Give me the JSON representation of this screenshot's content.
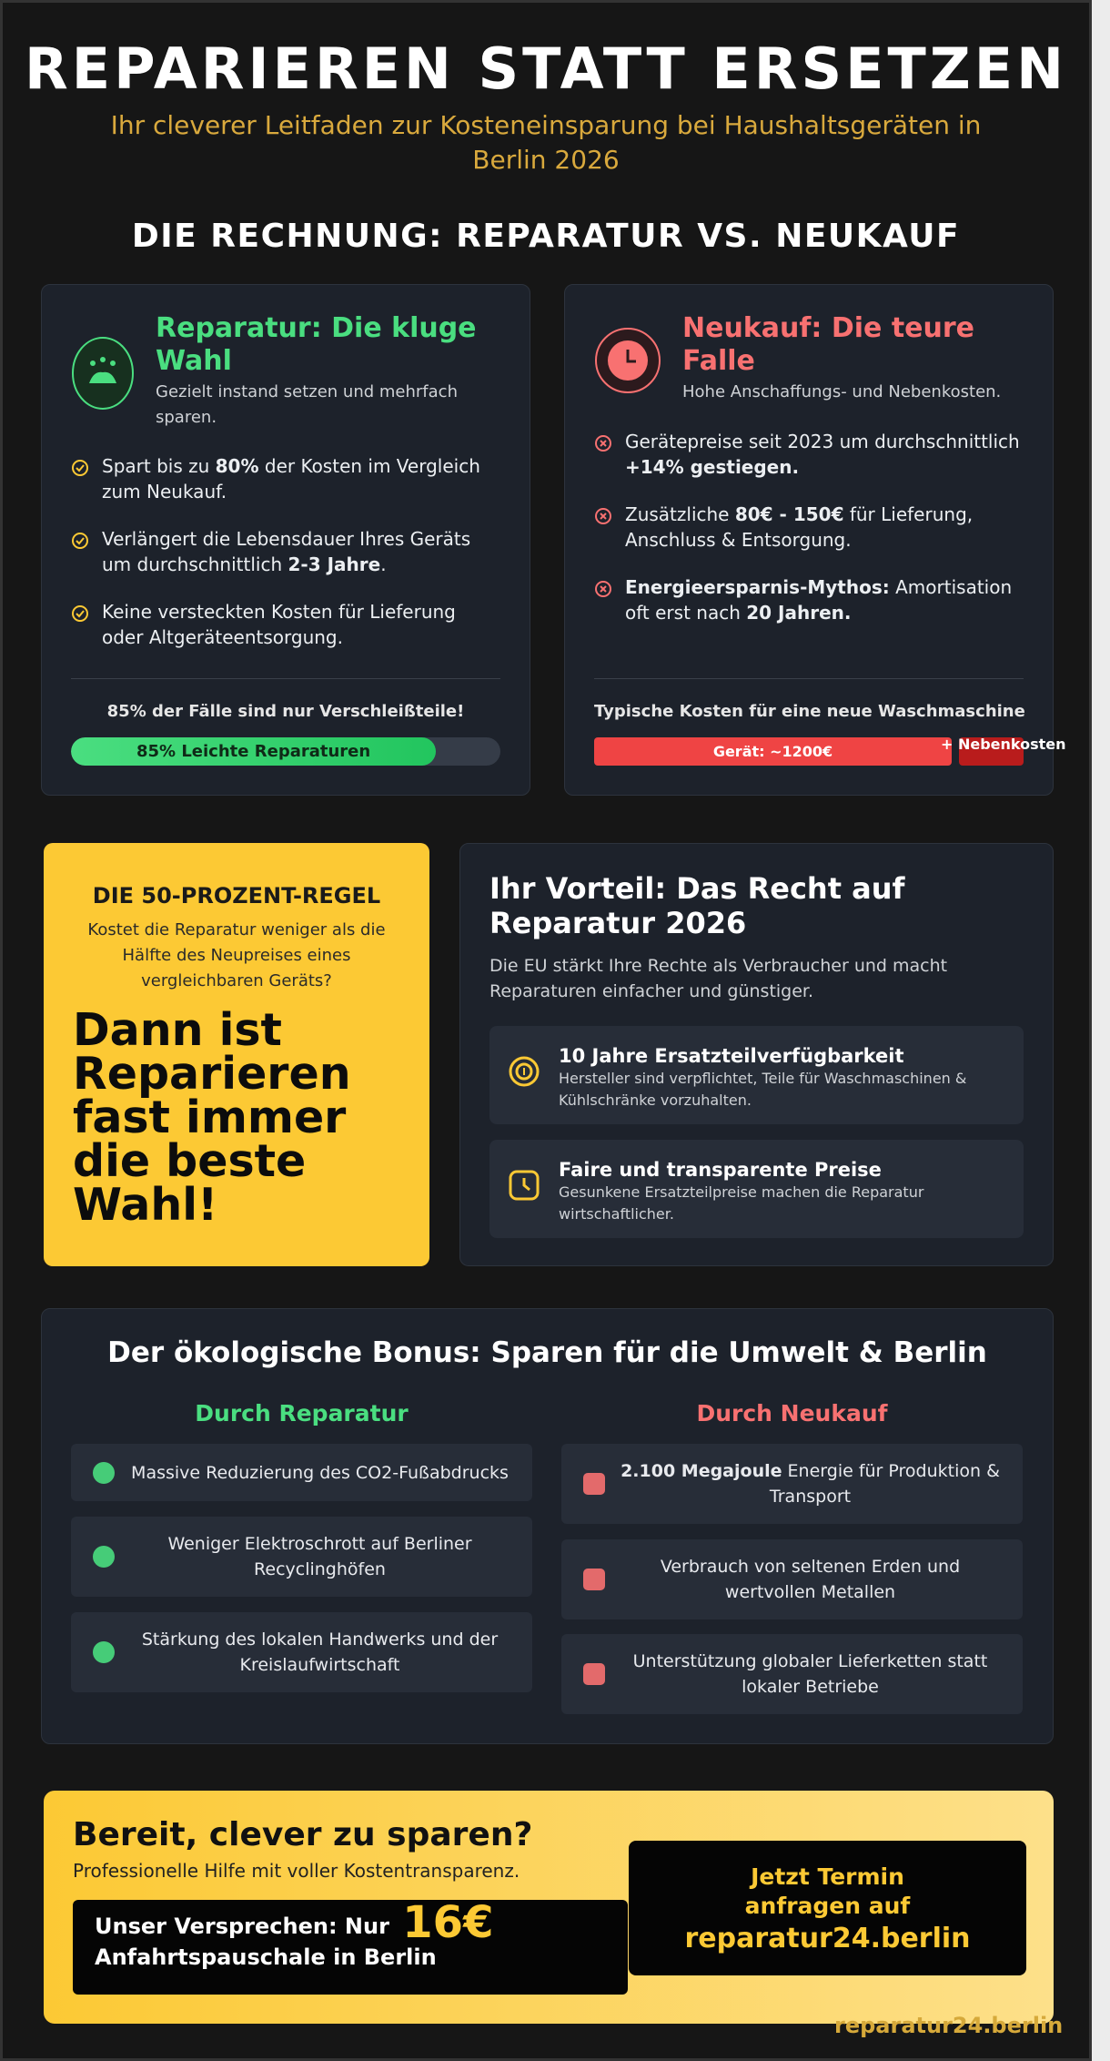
{
  "header": {
    "title": "REPARIEREN STATT ERSETZEN",
    "subtitle": "Ihr cleverer Leitfaden zur Kosteneinsparung bei Haushaltsgeräten in Berlin 2026"
  },
  "section_heading": "DIE RECHNUNG: REPARATUR VS. NEUKAUF",
  "repair_card": {
    "title": "Reparatur: Die kluge Wahl",
    "subtitle": "Gezielt instand setzen und mehrfach sparen.",
    "items": [
      [
        "Spart bis zu ",
        {
          "b": "80%"
        },
        " der Kosten im Vergleich zum Neukauf."
      ],
      [
        "Verlängert die Lebensdauer Ihres Geräts um durchschnittlich ",
        {
          "b": "2-3 Jahre"
        },
        "."
      ],
      [
        "Keine versteckten Kosten für Lieferung oder Altgeräteentsorgung."
      ]
    ],
    "caption": "85% der Fälle sind nur Verschleißteile!",
    "bar_label": "85% Leichte Reparaturen",
    "bar_percent": 85
  },
  "new_card": {
    "title": "Neukauf: Die teure Falle",
    "subtitle": "Hohe Anschaffungs- und Nebenkosten.",
    "items": [
      [
        "Gerätepreise seit 2023 um durchschnittlich ",
        {
          "b": "+14% gestiegen."
        }
      ],
      [
        "Zusätzliche ",
        {
          "b": "80€ - 150€"
        },
        " für Lieferung, Anschluss & Entsorgung."
      ],
      [
        {
          "b": "Energieersparnis-Mythos:"
        },
        " Amortisation oft erst nach ",
        {
          "b": "20 Jahren."
        }
      ]
    ],
    "caption": "Typische Kosten für eine neue Waschmaschine",
    "bar_segments": [
      "Gerät: ~1200€",
      "+ Nebenkosten"
    ]
  },
  "rule_card": {
    "heading": "DIE 50-PROZENT-REGEL",
    "text": "Kostet die Reparatur weniger als die Hälfte des Neupreises eines vergleichbaren Geräts?",
    "highlight": "Dann ist Reparieren fast immer die beste Wahl!"
  },
  "rights_card": {
    "title": "Ihr Vorteil: Das Recht auf Reparatur 2026",
    "text": "Die EU stärkt Ihre Rechte als Verbraucher und macht Reparaturen einfacher und günstiger.",
    "features": [
      {
        "title": "10 Jahre Ersatzteilverfügbarkeit",
        "text": "Hersteller sind verpflichtet, Teile für Waschmaschinen & Kühlschränke vorzuhalten."
      },
      {
        "title": "Faire und transparente Preise",
        "text": "Gesunkene Ersatzteilpreise machen die Reparatur wirtschaftlicher."
      }
    ]
  },
  "eco": {
    "title": "Der ökologische Bonus: Sparen für die Umwelt & Berlin",
    "repair": {
      "heading": "Durch Reparatur",
      "items": [
        [
          "Massive Reduzierung des CO2-Fußabdrucks"
        ],
        [
          "Weniger Elektroschrott auf Berliner Recyclinghöfen"
        ],
        [
          "Stärkung des lokalen Handwerks und der Kreislaufwirtschaft"
        ]
      ]
    },
    "new": {
      "heading": "Durch Neukauf",
      "items": [
        [
          {
            "b": "2.100 Megajoule"
          },
          " Energie für Produktion & Transport"
        ],
        [
          "Verbrauch von seltenen Erden und wertvollen Metallen"
        ],
        [
          "Unterstützung globaler Lieferketten statt lokaler Betriebe"
        ]
      ]
    }
  },
  "cta": {
    "title": "Bereit, clever zu sparen?",
    "subtitle": "Professionelle Hilfe mit voller Kostentransparenz.",
    "promise": [
      "Unser Versprechen: Nur ",
      {
        "b": "16€"
      },
      " Anfahrtspauschale in Berlin"
    ],
    "button": [
      "Jetzt Termin anfragen auf",
      "reparatur24.berlin"
    ]
  },
  "footer": "reparatur24.berlin"
}
